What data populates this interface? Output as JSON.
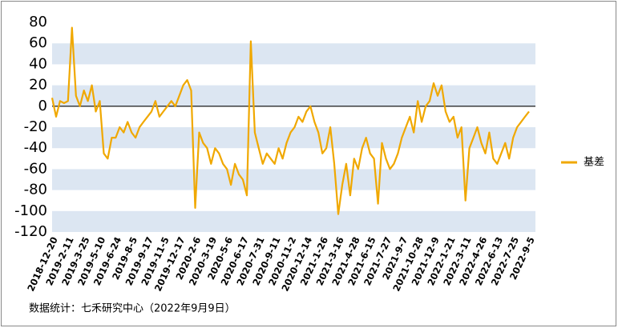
{
  "chart_data": {
    "type": "line",
    "source": "数据统计：七禾研究中心（2022年9月9日）",
    "categories": [
      "2018-12-20",
      null,
      null,
      null,
      "2019-2-11",
      null,
      null,
      null,
      "2019-3-25",
      null,
      null,
      null,
      "2019-5-10",
      null,
      null,
      null,
      "2019-6-24",
      null,
      null,
      null,
      "2019-8-5",
      null,
      null,
      null,
      "2019-9-17",
      null,
      null,
      null,
      "2019-11-5",
      null,
      null,
      null,
      "2019-12-17",
      null,
      null,
      null,
      "2020-2-6",
      null,
      null,
      null,
      "2020-3-19",
      null,
      null,
      null,
      "2020-5-6",
      null,
      null,
      null,
      "2020-6-17",
      null,
      null,
      null,
      "2020-7-31",
      null,
      null,
      null,
      "2020-9-11",
      null,
      null,
      null,
      "2020-11-2",
      null,
      null,
      null,
      "2020-12-14",
      null,
      null,
      null,
      "2021-1-26",
      null,
      null,
      null,
      "2021-3-16",
      null,
      null,
      null,
      "2021-4-28",
      null,
      null,
      null,
      "2021-6-15",
      null,
      null,
      null,
      "2021-7-27",
      null,
      null,
      null,
      "2021-9-7",
      null,
      null,
      null,
      "2021-10-28",
      null,
      null,
      null,
      "2021-12-9",
      null,
      null,
      null,
      "2022-1-21",
      null,
      null,
      null,
      "2022-3-11",
      null,
      null,
      null,
      "2022-4-26",
      null,
      null,
      null,
      "2022-6-13",
      null,
      null,
      null,
      "2022-7-25",
      null,
      null,
      null,
      "2022-9-5"
    ],
    "series": [
      {
        "name": "基差",
        "color": "#f0a800",
        "values": [
          8,
          -10,
          5,
          3,
          5,
          75,
          10,
          0,
          15,
          5,
          20,
          -5,
          5,
          -45,
          -50,
          -30,
          -30,
          -20,
          -25,
          -15,
          -25,
          -30,
          -20,
          -15,
          -10,
          -5,
          5,
          -10,
          -5,
          0,
          5,
          0,
          10,
          20,
          25,
          15,
          -97,
          -25,
          -35,
          -40,
          -55,
          -40,
          -45,
          -55,
          -60,
          -75,
          -55,
          -65,
          -70,
          -85,
          62,
          -25,
          -40,
          -55,
          -45,
          -50,
          -55,
          -40,
          -50,
          -35,
          -25,
          -20,
          -10,
          -15,
          -5,
          0,
          -15,
          -25,
          -45,
          -40,
          -20,
          -55,
          -103,
          -75,
          -55,
          -85,
          -50,
          -60,
          -40,
          -30,
          -45,
          -50,
          -93,
          -35,
          -50,
          -60,
          -55,
          -45,
          -30,
          -20,
          -10,
          -25,
          5,
          -15,
          0,
          5,
          22,
          10,
          20,
          -5,
          -15,
          -10,
          -30,
          -20,
          -90,
          -40,
          -30,
          -20,
          -35,
          -45,
          -25,
          -50,
          -55,
          -45,
          -35,
          -50,
          -30,
          -20,
          -15,
          -10,
          -5
        ]
      }
    ],
    "ylim": [
      -120,
      80
    ],
    "yticks": [
      -120,
      -100,
      -80,
      -60,
      -40,
      -20,
      0,
      20,
      40,
      60,
      80
    ],
    "grid": "bands",
    "legend": "right"
  }
}
